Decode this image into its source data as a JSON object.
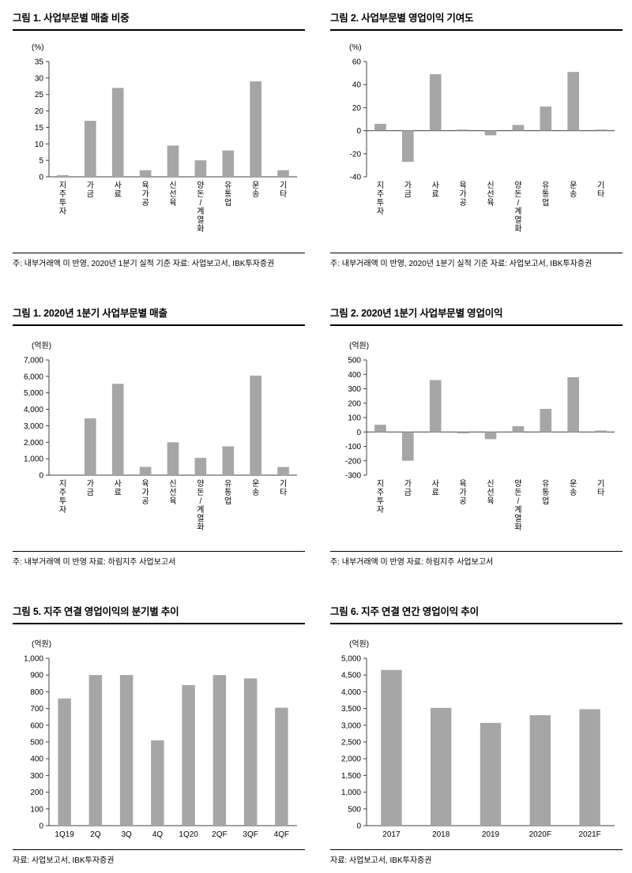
{
  "colors": {
    "bar": "#a6a6a6",
    "axis": "#404040"
  },
  "chart_data": [
    {
      "type": "bar",
      "title": "그림 1. 사업부문별 매출 비중",
      "unit": "(%)",
      "note": "주: 내부거래액 미 반영, 2020년 1분기 실적 기준 자료: 사업보고서, IBK투자증권",
      "categories": [
        "지주투자",
        "가금",
        "사료",
        "육가공",
        "신선육",
        "양돈/계열화",
        "유통업",
        "운송",
        "기타"
      ],
      "values": [
        0.5,
        17,
        27,
        2,
        9.5,
        5,
        8,
        29,
        2
      ],
      "ymin": 0,
      "ymax": 35,
      "ystep": 5,
      "label_orientation": "vertical",
      "grid": "off",
      "legend": "none"
    },
    {
      "type": "bar",
      "title": "그림 2. 사업부문별 영업이익 기여도",
      "unit": "(%)",
      "note": "주: 내부거래액 미 반영, 2020년 1분기 실적 기준 자료: 사업보고서, IBK투자증권",
      "categories": [
        "지주투자",
        "가금",
        "사료",
        "육가공",
        "신선육",
        "양돈/계열화",
        "유통업",
        "운송",
        "기타"
      ],
      "values": [
        6,
        -27,
        49,
        1,
        -4,
        5,
        21,
        51,
        1
      ],
      "ymin": -40,
      "ymax": 60,
      "ystep": 20,
      "label_orientation": "vertical",
      "grid": "off",
      "legend": "none"
    },
    {
      "type": "bar",
      "title": "그림 1. 2020년 1분기 사업부문별 매출",
      "unit": "(억원)",
      "note": "주: 내부거래액 미 반영 자료: 하림지주 사업보고서",
      "categories": [
        "지주투자",
        "가금",
        "사료",
        "육가공",
        "신선육",
        "양돈/계열화",
        "유통업",
        "운송",
        "기타"
      ],
      "values": [
        50,
        3450,
        5550,
        500,
        2000,
        1050,
        1750,
        6050,
        500
      ],
      "ymin": 0,
      "ymax": 7000,
      "ystep": 1000,
      "label_orientation": "vertical",
      "grid": "off",
      "legend": "none"
    },
    {
      "type": "bar",
      "title": "그림 2. 2020년 1분기 사업부문별 영업이익",
      "unit": "(억원)",
      "note": "주: 내부거래액 미 반영 자료: 하림지주 사업보고서",
      "categories": [
        "지주투자",
        "가금",
        "사료",
        "육가공",
        "신선육",
        "양돈/계열화",
        "유통업",
        "운송",
        "기타"
      ],
      "values": [
        50,
        -200,
        360,
        -10,
        -50,
        40,
        160,
        380,
        10
      ],
      "ymin": -300,
      "ymax": 500,
      "ystep": 100,
      "label_orientation": "vertical",
      "grid": "off",
      "legend": "none"
    },
    {
      "type": "bar",
      "title": "그림 5. 지주 연결 영업이익의 분기별 추이",
      "unit": "(억원)",
      "note": "자료: 사업보고서, IBK투자증권",
      "categories": [
        "1Q19",
        "2Q",
        "3Q",
        "4Q",
        "1Q20",
        "2QF",
        "3QF",
        "4QF"
      ],
      "values": [
        760,
        900,
        900,
        510,
        840,
        900,
        880,
        705
      ],
      "ymin": 0,
      "ymax": 1000,
      "ystep": 100,
      "label_orientation": "horizontal",
      "grid": "off",
      "legend": "none"
    },
    {
      "type": "bar",
      "title": "그림 6. 지주 연결 연간 영업이익 추이",
      "unit": "(억원)",
      "note": "자료: 사업보고서, IBK투자증권",
      "categories": [
        "2017",
        "2018",
        "2019",
        "2020F",
        "2021F"
      ],
      "values": [
        4650,
        3520,
        3070,
        3300,
        3480
      ],
      "ymin": 0,
      "ymax": 5000,
      "ystep": 500,
      "label_orientation": "horizontal",
      "grid": "off",
      "legend": "none"
    }
  ]
}
